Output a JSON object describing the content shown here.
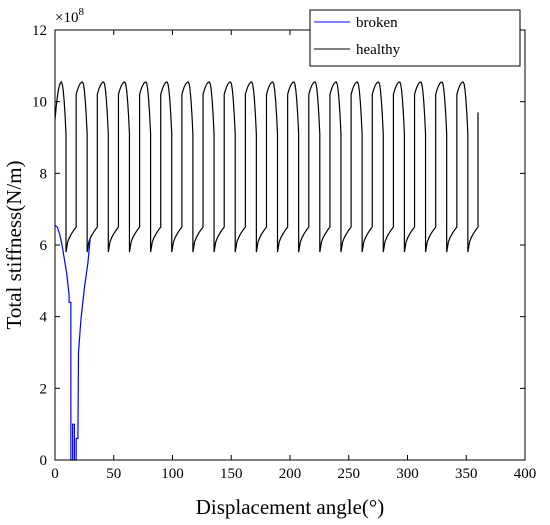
{
  "chart_data": {
    "type": "line",
    "xlabel": "Displacement angle(°)",
    "ylabel": "Total stiffness(N/m)",
    "y_multiplier_base": "×10",
    "y_multiplier_exp": "8",
    "xlim": [
      0,
      400
    ],
    "ylim": [
      0,
      12
    ],
    "xticks": [
      0,
      50,
      100,
      150,
      200,
      250,
      300,
      350,
      400
    ],
    "yticks": [
      0,
      2,
      4,
      6,
      8,
      10,
      12
    ],
    "x_unit": "degrees",
    "y_unit": "×10^8 N/m",
    "grid": false,
    "legend_position": "top-right",
    "series": [
      {
        "name": "broken",
        "color": "#0000ff",
        "x": [
          0,
          2,
          4,
          6,
          8,
          10,
          12,
          12,
          13.5,
          13.5,
          15,
          15,
          16.5,
          16.5,
          18,
          18,
          19.5,
          20,
          20,
          22,
          25,
          28,
          30
        ],
        "y": [
          6.55,
          6.5,
          6.3,
          6.0,
          5.6,
          5.2,
          4.6,
          4.4,
          4.4,
          0,
          0,
          1.0,
          1.0,
          0,
          0,
          0.6,
          0.6,
          3.0,
          3.0,
          3.9,
          4.8,
          5.5,
          6.2
        ]
      },
      {
        "name": "healthy",
        "color": "#000000",
        "pattern": {
          "period": 18,
          "start": 0,
          "end": 360,
          "first_value": 9.5,
          "rise_start_value": 10.2,
          "peak_value": 10.55,
          "pre_drop_value": 9.1,
          "trough_value": 5.8,
          "pre_jump_value": 6.5,
          "last_value": 9.7
        }
      }
    ]
  }
}
